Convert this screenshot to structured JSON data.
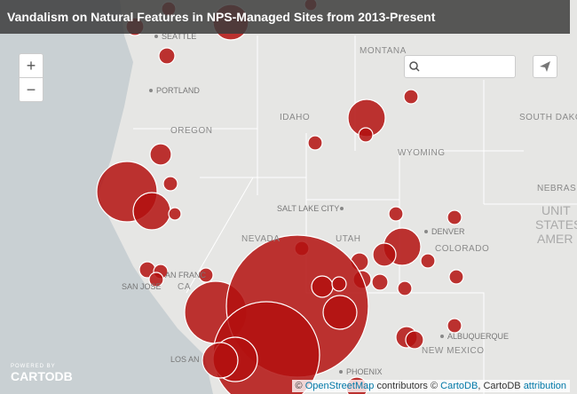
{
  "header": {
    "title": "Vandalism on Natural Features in NPS-Managed Sites from 2013-Present"
  },
  "controls": {
    "zoom_in": "+",
    "zoom_out": "−"
  },
  "labels": {
    "seattle": "SEATTLE",
    "montana": "MONTANA",
    "portland": "PORTLAND",
    "idaho": "IDAHO",
    "oregon": "OREGON",
    "south_dakota": "SOUTH DAKO",
    "wyoming": "WYOMING",
    "nebraska": "NEBRAS",
    "salt_lake_city": "SALT LAKE CITY",
    "nevada": "NEVADA",
    "utah": "UTAH",
    "denver": "DENVER",
    "colorado": "COLORADO",
    "united": "UNIT",
    "states": "STATES",
    "america": "AMER",
    "san_francisco": "AN FRANC",
    "california": "CA",
    "san_jose": "SAN JOSE",
    "albuquerque": "ALBUQUERQUE",
    "new_mexico": "NEW MEXICO",
    "los_angeles": "LOS AN",
    "phoenix": "PHOENIX"
  },
  "branding": {
    "powered_by": "POWERED BY",
    "name": "CARTODB"
  },
  "attribution": {
    "prefix": "©",
    "osm": "OpenStreetMap",
    "middle": "contributors ©",
    "cartodb": "CartoDB",
    "suffix": ", CartoDB",
    "link": "attribution"
  }
}
